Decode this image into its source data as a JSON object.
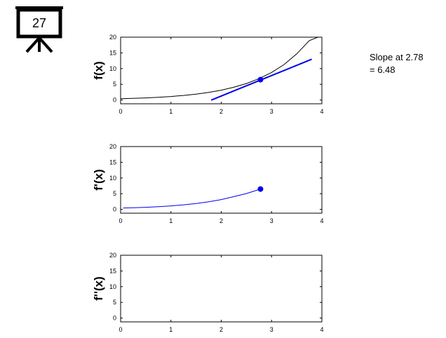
{
  "badge": {
    "number": "27",
    "icon": "presentation-easel-icon"
  },
  "annotation": {
    "line1": "Slope at 2.78",
    "line2": "= 6.48"
  },
  "chart_data": [
    {
      "type": "line",
      "ylabel": "f(x)",
      "xlim": [
        0,
        4
      ],
      "ylim": [
        -1.2,
        20
      ],
      "xticks": [
        "0",
        "1",
        "2",
        "3",
        "4"
      ],
      "yticks": [
        "0",
        "5",
        "10",
        "15",
        "20"
      ],
      "grid": false,
      "series": [
        {
          "color": "#000000",
          "x": [
            0,
            0.25,
            0.5,
            0.75,
            1,
            1.25,
            1.5,
            1.75,
            2,
            2.25,
            2.5,
            2.75,
            3,
            3.25,
            3.5,
            3.75,
            4
          ],
          "y": [
            0.4,
            0.52,
            0.67,
            0.87,
            1.12,
            1.45,
            1.88,
            2.43,
            3.14,
            4.06,
            5.25,
            6.78,
            8.77,
            11.3,
            14.7,
            18.9,
            20.5
          ]
        },
        {
          "color": "#0000ee",
          "x": [
            1.8,
            3.8
          ],
          "y": [
            -0.05,
            13.0
          ]
        }
      ],
      "points": [
        {
          "x": 2.78,
          "y": 6.48,
          "color": "#0000ee"
        }
      ]
    },
    {
      "type": "line",
      "ylabel": "f'(x)",
      "xlim": [
        0,
        4
      ],
      "ylim": [
        -1.2,
        20
      ],
      "xticks": [
        "0",
        "1",
        "2",
        "3",
        "4"
      ],
      "yticks": [
        "0",
        "5",
        "10",
        "15",
        "20"
      ],
      "grid": false,
      "series": [
        {
          "color": "#0000ee",
          "x": [
            0.05,
            0.25,
            0.5,
            0.75,
            1,
            1.25,
            1.5,
            1.75,
            2,
            2.25,
            2.5,
            2.78
          ],
          "y": [
            0.45,
            0.52,
            0.67,
            0.87,
            1.12,
            1.45,
            1.88,
            2.43,
            3.14,
            4.06,
            5.05,
            6.48
          ]
        }
      ],
      "points": [
        {
          "x": 2.78,
          "y": 6.48,
          "color": "#0000ee"
        }
      ]
    },
    {
      "type": "line",
      "ylabel": "f''(x)",
      "xlim": [
        0,
        4
      ],
      "ylim": [
        -1.2,
        20
      ],
      "xticks": [
        "0",
        "1",
        "2",
        "3",
        "4"
      ],
      "yticks": [
        "0",
        "5",
        "10",
        "15",
        "20"
      ],
      "grid": false,
      "series": [],
      "points": []
    }
  ]
}
